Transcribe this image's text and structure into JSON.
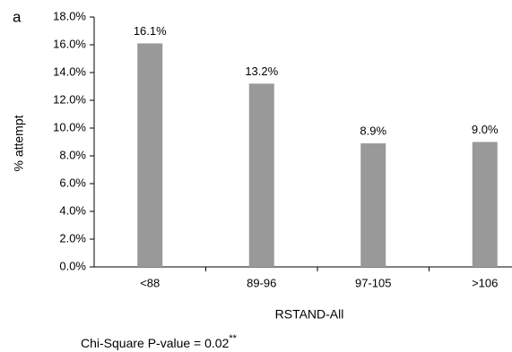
{
  "chart_data": {
    "type": "bar",
    "panel_label": "a",
    "categories": [
      "<88",
      "89-96",
      "97-105",
      ">106"
    ],
    "values": [
      16.1,
      13.2,
      8.9,
      9.0
    ],
    "value_labels": [
      "16.1%",
      "13.2%",
      "8.9%",
      "9.0%"
    ],
    "color": "#999999",
    "x_label": "RSTAND-All",
    "y_label": "% attempt",
    "ylim": [
      0,
      18
    ],
    "yticks": [
      {
        "value": 0,
        "label": "0.0%"
      },
      {
        "value": 2,
        "label": "2.0%"
      },
      {
        "value": 4,
        "label": "4.0%"
      },
      {
        "value": 6,
        "label": "6.0%"
      },
      {
        "value": 8,
        "label": "8.0%"
      },
      {
        "value": 10,
        "label": "10.0%"
      },
      {
        "value": 12,
        "label": "12.0%"
      },
      {
        "value": 14,
        "label": "14.0%"
      },
      {
        "value": 16,
        "label": "16.0%"
      },
      {
        "value": 18,
        "label": "18.0%"
      }
    ],
    "annotation": "Chi-Square P-value = 0.02",
    "annotation_superscript": "**"
  }
}
